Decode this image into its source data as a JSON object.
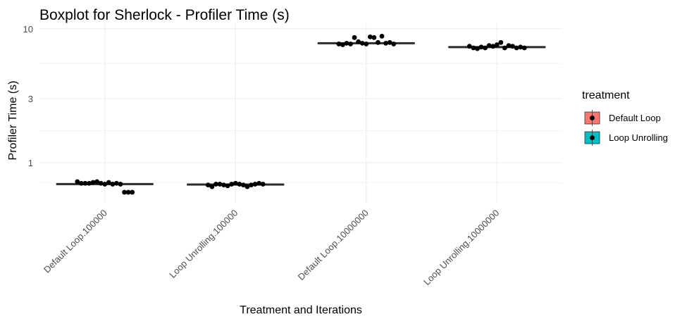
{
  "chart_data": {
    "type": "boxplot",
    "title": "Boxplot for Sherlock - Profiler Time (s)",
    "xlabel": "Treatment and Iterations",
    "ylabel": "Profiler Time (s)",
    "y_scale": "log10",
    "ylim": [
      0.5,
      11
    ],
    "y_ticks": [
      1,
      3,
      10
    ],
    "grid": true,
    "legend": {
      "title": "treatment",
      "placement": "right",
      "entries": [
        {
          "label": "Default Loop",
          "color": "#F8766D"
        },
        {
          "label": "Loop Unrolling",
          "color": "#00BFC4"
        }
      ]
    },
    "categories": [
      "Default Loop.100000",
      "Loop Unrolling.100000",
      "Default Loop.10000000",
      "Loop Unrolling.10000000"
    ],
    "boxes": [
      {
        "category": "Default Loop.100000",
        "treatment": "Default Loop",
        "median": 0.69,
        "q1": 0.685,
        "q3": 0.695,
        "points": [
          0.72,
          0.7,
          0.7,
          0.7,
          0.71,
          0.72,
          0.7,
          0.69,
          0.71,
          0.69,
          0.7,
          0.69,
          0.6,
          0.6,
          0.6
        ]
      },
      {
        "category": "Loop Unrolling.100000",
        "treatment": "Loop Unrolling",
        "median": 0.685,
        "q1": 0.68,
        "q3": 0.69,
        "points": [
          0.68,
          0.66,
          0.69,
          0.69,
          0.68,
          0.67,
          0.69,
          0.7,
          0.69,
          0.68,
          0.66,
          0.68,
          0.69,
          0.7,
          0.69
        ]
      },
      {
        "category": "Default Loop.10000000",
        "treatment": "Default Loop",
        "median": 7.8,
        "q1": 7.75,
        "q3": 7.85,
        "points": [
          7.7,
          7.6,
          7.8,
          7.7,
          8.6,
          8.0,
          7.8,
          7.7,
          8.7,
          8.6,
          7.9,
          8.8,
          7.8,
          7.9,
          7.7
        ]
      },
      {
        "category": "Loop Unrolling.10000000",
        "treatment": "Loop Unrolling",
        "median": 7.3,
        "q1": 7.25,
        "q3": 7.35,
        "points": [
          7.4,
          7.2,
          7.1,
          7.3,
          7.2,
          7.5,
          7.4,
          7.6,
          7.9,
          7.2,
          7.5,
          7.4,
          7.2,
          7.3,
          7.2
        ]
      }
    ]
  },
  "colors": {
    "box_line": "#2b2b2b",
    "point": "#000000"
  }
}
